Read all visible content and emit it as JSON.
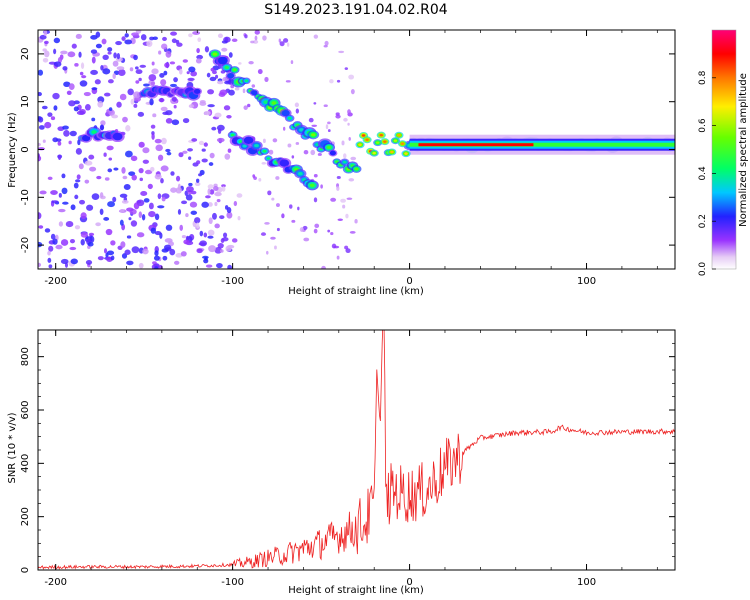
{
  "title": "S149.2023.191.04.02.R04",
  "chart_data": [
    {
      "type": "heatmap",
      "xlabel": "Height of straight line (km)",
      "ylabel": "Frequency (Hz)",
      "xlim": [
        -210,
        150
      ],
      "ylim": [
        -25,
        25
      ],
      "xticks": [
        -200,
        -100,
        0,
        100
      ],
      "yticks": [
        -20,
        -10,
        0,
        10,
        20
      ],
      "colorbar": {
        "label": "Normalized spectral amplitude",
        "range": [
          0,
          1
        ],
        "ticks": [
          "0.0",
          "0.2",
          "0.4",
          "0.6",
          "0.8"
        ],
        "colormap": "rainbow"
      },
      "features": [
        {
          "name": "steady-tone",
          "x": [
            0,
            150
          ],
          "freq": 1,
          "level": 0.6
        },
        {
          "name": "chirp-upper",
          "x": [
            -110,
            -30
          ],
          "freq_start": 19,
          "freq_end": -5,
          "level": 0.45
        },
        {
          "name": "chirp-lower",
          "x": [
            -100,
            -55
          ],
          "freq_start": 3,
          "freq_end": -7,
          "level": 0.4
        },
        {
          "name": "band-left",
          "x": [
            -185,
            -165
          ],
          "freq": 3,
          "level": 0.35
        },
        {
          "name": "band-mid",
          "x": [
            -150,
            -120
          ],
          "freq": 12,
          "level": 0.3
        }
      ]
    },
    {
      "type": "line",
      "xlabel": "Height of straight line (km)",
      "ylabel": "SNR (10 * v/v)",
      "xlim": [
        -210,
        150
      ],
      "ylim": [
        0,
        900
      ],
      "xticks": [
        -200,
        -100,
        0,
        100
      ],
      "yticks": [
        0,
        200,
        400,
        600,
        800
      ],
      "color": "#ee2222",
      "series": [
        {
          "x": [
            -210,
            -180,
            -150,
            -120,
            -100,
            -90,
            -80,
            -70,
            -60,
            -50,
            -40,
            -30,
            -25,
            -20,
            -18,
            -15,
            -10,
            0,
            10,
            20,
            30,
            40,
            60,
            80,
            85,
            100,
            120,
            150
          ],
          "values": [
            10,
            12,
            12,
            15,
            20,
            30,
            45,
            60,
            80,
            100,
            130,
            160,
            180,
            250,
            800,
            220,
            300,
            280,
            300,
            380,
            440,
            495,
            515,
            518,
            535,
            515,
            518,
            520
          ]
        }
      ]
    }
  ]
}
